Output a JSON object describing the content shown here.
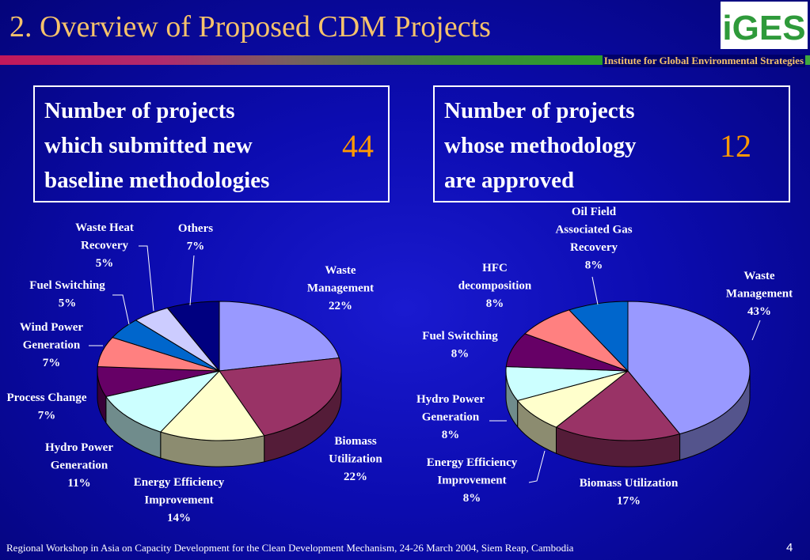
{
  "slide": {
    "title": "2. Overview of Proposed CDM Projects",
    "logo_text": "iGES",
    "institute": "Institute for Global Environmental Strategies",
    "footer": "Regional Workshop in Asia on Capacity Development for the Clean Development Mechanism, 24-26 March 2004, Siem Reap, Cambodia",
    "page_number": "4"
  },
  "boxes": [
    {
      "lines": [
        "Number of projects",
        "which submitted new",
        "baseline methodologies"
      ],
      "value": "44"
    },
    {
      "lines": [
        "Number of projects",
        "whose methodology",
        "are approved"
      ],
      "value": "12"
    }
  ],
  "colors": {
    "title": "#f5c26b",
    "highlight_number": "#ff9900",
    "background": "#0c0cb0"
  },
  "chart_data": [
    {
      "type": "pie",
      "style": "3d",
      "slices": [
        {
          "name": [
            "Waste",
            "Management"
          ],
          "value": 22,
          "label": "22%",
          "color": "#9999ff"
        },
        {
          "name": [
            "Biomass",
            "Utilization"
          ],
          "value": 22,
          "label": "22%",
          "color": "#993366"
        },
        {
          "name": [
            "Energy Efficiency",
            "Improvement"
          ],
          "value": 14,
          "label": "14%",
          "color": "#ffffcc"
        },
        {
          "name": [
            "Hydro Power",
            "Generation"
          ],
          "value": 11,
          "label": "11%",
          "color": "#ccffff"
        },
        {
          "name": [
            "Process Change"
          ],
          "value": 7,
          "label": "7%",
          "color": "#660066"
        },
        {
          "name": [
            "Wind Power",
            "Generation"
          ],
          "value": 7,
          "label": "7%",
          "color": "#ff8080"
        },
        {
          "name": [
            "Fuel Switching"
          ],
          "value": 5,
          "label": "5%",
          "color": "#0066cc"
        },
        {
          "name": [
            "Waste Heat",
            "Recovery"
          ],
          "value": 5,
          "label": "5%",
          "color": "#ccccff"
        },
        {
          "name": [
            "Others"
          ],
          "value": 7,
          "label": "7%",
          "color": "#000080"
        }
      ]
    },
    {
      "type": "pie",
      "style": "3d",
      "slices": [
        {
          "name": [
            "Waste",
            "Management"
          ],
          "value": 43,
          "label": "43%",
          "color": "#9999ff"
        },
        {
          "name": [
            "Biomass Utilization"
          ],
          "value": 17,
          "label": "17%",
          "color": "#993366"
        },
        {
          "name": [
            "Energy Efficiency",
            "Improvement"
          ],
          "value": 8,
          "label": "8%",
          "color": "#ffffcc"
        },
        {
          "name": [
            "Hydro Power",
            "Generation"
          ],
          "value": 8,
          "label": "8%",
          "color": "#ccffff"
        },
        {
          "name": [
            "Fuel Switching"
          ],
          "value": 8,
          "label": "8%",
          "color": "#660066"
        },
        {
          "name": [
            "HFC",
            "decomposition"
          ],
          "value": 8,
          "label": "8%",
          "color": "#ff8080"
        },
        {
          "name": [
            "Oil Field",
            "Associated Gas",
            "Recovery"
          ],
          "value": 8,
          "label": "8%",
          "color": "#0066cc"
        }
      ]
    }
  ]
}
